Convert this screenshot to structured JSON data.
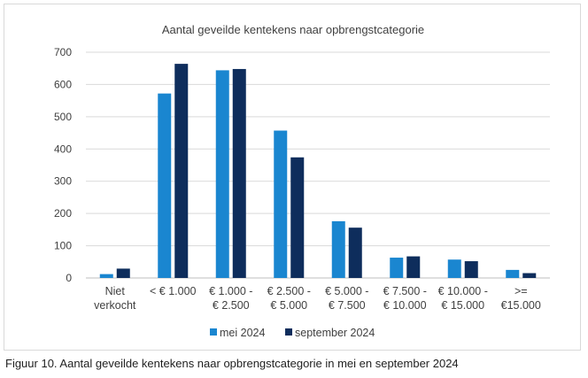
{
  "chart_data": {
    "type": "bar",
    "title": "Aantal geveilde kentekens naar opbrengstcategorie",
    "xlabel": "",
    "ylabel": "",
    "ylim": [
      0,
      700
    ],
    "yticks": [
      0,
      100,
      200,
      300,
      400,
      500,
      600,
      700
    ],
    "grid": true,
    "legend_position": "bottom",
    "categories": [
      [
        "Niet",
        "verkocht"
      ],
      [
        "< € 1.000"
      ],
      [
        "€ 1.000 -",
        "€ 2.500"
      ],
      [
        "€ 2.500 -",
        "€ 5.000"
      ],
      [
        "€ 5.000 -",
        "€ 7.500"
      ],
      [
        "€ 7.500 -",
        "€ 10.000"
      ],
      [
        "€ 10.000 -",
        "€ 15.000"
      ],
      [
        ">=",
        "€15.000"
      ]
    ],
    "series": [
      {
        "name": "mei 2024",
        "color": "#1a86d0",
        "values": [
          12,
          572,
          644,
          457,
          176,
          63,
          57,
          25
        ]
      },
      {
        "name": "september 2024",
        "color": "#0e2d5c",
        "values": [
          29,
          664,
          648,
          374,
          156,
          67,
          52,
          15
        ]
      }
    ]
  },
  "caption": "Figuur 10. Aantal geveilde kentekens naar opbrengstcategorie in mei en september 2024"
}
